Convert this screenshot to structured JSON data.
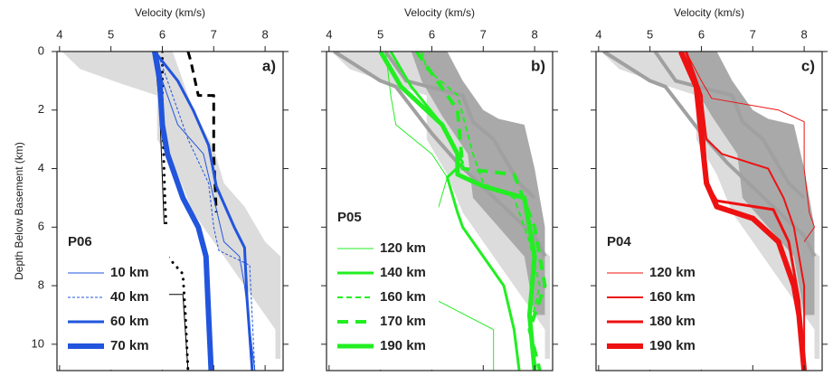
{
  "chart_data": [
    {
      "type": "line",
      "x_label": "Velocity (km/s)",
      "y_label": "Depth Below Basement (km)",
      "panel_label": "a)",
      "legend_title": "P06",
      "xlim": [
        3.95,
        8.35
      ],
      "ylim": [
        0,
        10.9
      ],
      "xticks": [
        4,
        5,
        6,
        7,
        8
      ],
      "yticks": [
        0,
        2,
        4,
        6,
        8,
        10
      ],
      "y_inverted": true,
      "regions": [
        {
          "color": "#dcdcdc",
          "x": [
            4.05,
            4.4,
            5.2,
            5.9,
            5.9,
            6.3,
            6.6,
            7.2,
            7.6,
            8.2,
            8.2,
            8.3,
            8.3,
            8.0,
            7.6,
            7.2,
            7.0,
            6.6,
            6.3,
            6.2
          ],
          "y": [
            0,
            0.6,
            1.1,
            1.5,
            3,
            4.2,
            5.5,
            7,
            8,
            9.5,
            10.5,
            10.5,
            7,
            6.5,
            5.3,
            4.5,
            3.3,
            2.0,
            0.5,
            0
          ]
        }
      ],
      "lines": [
        {
          "color": "#000000",
          "linestyle": "dotted",
          "linewidth": 3,
          "x": [
            6.0,
            6.0,
            6.05,
            6.1,
            6.4,
            6.45,
            6.5
          ],
          "y": [
            0,
            2,
            5,
            7,
            7.6,
            9,
            10.9
          ]
        },
        {
          "color": "#000000",
          "linestyle": "solid",
          "linewidth": 1,
          "x": [
            5.85,
            5.95,
            6.05,
            6.1,
            6.4,
            6.5
          ],
          "y": [
            0,
            2,
            6.6,
            8.3,
            8.3,
            10.9
          ]
        },
        {
          "color": "#000000",
          "linestyle": "dashed",
          "linewidth": 3,
          "x": [
            6.5,
            6.55,
            6.7,
            7.0,
            7.0,
            7.05
          ],
          "y": [
            0,
            0.3,
            1.5,
            1.5,
            3.5,
            5.5
          ]
        }
      ],
      "series": [
        {
          "name": "10 km",
          "color": "#2255dd",
          "linestyle": "solid",
          "linewidth": 1,
          "x": [
            5.9,
            6.0,
            6.3,
            6.8,
            7.0,
            7.2,
            7.5,
            7.6,
            7.8
          ],
          "y": [
            0,
            1,
            2.5,
            3.5,
            5,
            6.5,
            7,
            8,
            10.9
          ]
        },
        {
          "name": "40 km",
          "color": "#2255dd",
          "linestyle": "dashed",
          "linewidth": 1,
          "x": [
            5.9,
            6.2,
            6.5,
            6.9,
            7.0,
            7.1,
            7.7,
            7.8
          ],
          "y": [
            0,
            1.5,
            3.0,
            4.5,
            6.0,
            6.8,
            7.3,
            10.9
          ]
        },
        {
          "name": "60 km",
          "color": "#2255dd",
          "linestyle": "solid",
          "linewidth": 3,
          "x": [
            5.85,
            6.3,
            6.6,
            6.9,
            7.05,
            7.4,
            7.6,
            7.65,
            7.75
          ],
          "y": [
            0,
            1,
            2,
            3.2,
            4.6,
            6,
            6.7,
            8.5,
            10.9
          ]
        },
        {
          "name": "70 km",
          "color": "#2255dd",
          "linestyle": "solid",
          "linewidth": 6,
          "x": [
            5.85,
            5.95,
            6.0,
            6.1,
            6.4,
            6.7,
            6.85,
            6.9,
            6.95
          ],
          "y": [
            0,
            1,
            2.5,
            3.5,
            5.0,
            6,
            7,
            9,
            10.9
          ]
        }
      ]
    },
    {
      "type": "line",
      "x_label": "Velocity (km/s)",
      "panel_label": "b)",
      "legend_title": "P05",
      "xlim": [
        3.95,
        8.35
      ],
      "ylim": [
        0,
        10.9
      ],
      "xticks": [
        4,
        5,
        6,
        7,
        8
      ],
      "yticks": [
        0,
        2,
        4,
        6,
        8,
        10
      ],
      "y_inverted": true,
      "regions": [
        {
          "color": "#dcdcdc",
          "x": [
            4.05,
            4.4,
            5.2,
            5.9,
            5.9,
            6.3,
            6.6,
            7.2,
            7.6,
            8.2,
            8.2,
            8.3,
            8.3,
            8.0,
            7.6,
            7.2,
            7.0,
            6.6,
            6.3,
            6.2
          ],
          "y": [
            0,
            0.6,
            1.1,
            1.5,
            3,
            4.2,
            5.5,
            7,
            8,
            9.5,
            10.5,
            10.5,
            7,
            6.5,
            5.3,
            4.5,
            3.3,
            2.0,
            0.5,
            0
          ]
        },
        {
          "color": "#a9a9a9",
          "x": [
            5.6,
            6.3,
            6.6,
            7.0,
            7.3,
            7.8,
            8.0,
            8.2,
            8.2,
            8.0,
            7.8,
            7.3,
            6.8,
            6.7,
            6.2,
            5.8
          ],
          "y": [
            0,
            0,
            1,
            2,
            2.3,
            2.5,
            4,
            6,
            9,
            9,
            7,
            6.0,
            5.0,
            3.5,
            2.2,
            1.0
          ]
        }
      ],
      "lines": [
        {
          "color": "#a0a0a0",
          "linestyle": "solid",
          "linewidth": 4,
          "x": [
            4.1,
            5.0,
            5.3,
            6.0,
            6.5,
            7.4,
            8.0,
            8.2
          ],
          "y": [
            0,
            1,
            1.2,
            2.8,
            3.8,
            5.3,
            6.3,
            7
          ]
        },
        {
          "color": "#a0a0a0",
          "linestyle": "solid",
          "linewidth": 4,
          "x": [
            5.1,
            5.5,
            6.6,
            6.8,
            7.2,
            7.7,
            8.0
          ],
          "y": [
            0,
            1.0,
            1.5,
            2.4,
            3.0,
            4.5,
            5
          ]
        }
      ],
      "series": [
        {
          "name": "120 km",
          "color": "#22ee22",
          "linestyle": "solid",
          "linewidth": 1,
          "x": [
            5.1,
            5.2,
            5.3,
            6.0,
            6.3,
            6.1,
            6.0,
            6.1,
            7.2,
            7.2
          ],
          "y": [
            0,
            1.5,
            2.5,
            3.5,
            4.3,
            5.5,
            7.5,
            8.5,
            9.5,
            10.9
          ]
        },
        {
          "name": "140 km",
          "color": "#22ee22",
          "linestyle": "solid",
          "linewidth": 3,
          "x": [
            5.2,
            5.6,
            6.2,
            6.6,
            6.3,
            6.5,
            6.6,
            7.4,
            7.6,
            7.7
          ],
          "y": [
            0,
            1.2,
            2.5,
            3.8,
            4.3,
            5.5,
            6,
            8,
            9.5,
            10.9
          ]
        },
        {
          "name": "160 km",
          "color": "#22ee22",
          "linestyle": "dashed",
          "linewidth": 2,
          "x": [
            5.8,
            5.9,
            6.5,
            6.8,
            7.0,
            7.6,
            7.9,
            8.1,
            7.9,
            8.0
          ],
          "y": [
            0,
            0.6,
            1.5,
            3.5,
            4.5,
            5,
            6.5,
            8,
            9.5,
            10.9
          ]
        },
        {
          "name": "170 km",
          "color": "#22ee22",
          "linestyle": "dashed",
          "linewidth": 4,
          "x": [
            5.7,
            6.5,
            6.6,
            7.6,
            8.0,
            8.2,
            7.9,
            8.1
          ],
          "y": [
            0,
            2,
            4,
            4.2,
            6,
            8,
            9.5,
            10.9
          ]
        },
        {
          "name": "190 km",
          "color": "#22ee22",
          "linestyle": "solid",
          "linewidth": 5,
          "x": [
            5.0,
            5.4,
            6.2,
            6.5,
            6.5,
            7.0,
            7.8,
            8.0,
            7.9,
            8.0
          ],
          "y": [
            0,
            1.2,
            2.5,
            3.5,
            4.2,
            4.6,
            5.0,
            7,
            9,
            10.9
          ]
        }
      ]
    },
    {
      "type": "line",
      "x_label": "Velocity (km/s)",
      "panel_label": "c)",
      "legend_title": "P04",
      "xlim": [
        3.95,
        8.35
      ],
      "ylim": [
        0,
        10.9
      ],
      "xticks": [
        4,
        5,
        6,
        7,
        8
      ],
      "yticks": [
        0,
        2,
        4,
        6,
        8,
        10
      ],
      "y_inverted": true,
      "regions": [
        {
          "color": "#dcdcdc",
          "x": [
            4.05,
            4.4,
            5.2,
            5.9,
            5.9,
            6.3,
            6.6,
            7.2,
            7.6,
            8.2,
            8.2,
            8.3,
            8.3,
            8.0,
            7.6,
            7.2,
            7.0,
            6.6,
            6.3,
            6.2
          ],
          "y": [
            0,
            0.6,
            1.1,
            1.5,
            3,
            4.2,
            5.5,
            7,
            8,
            9.5,
            10.5,
            10.5,
            7,
            6.5,
            5.3,
            4.5,
            3.3,
            2.0,
            0.5,
            0
          ]
        },
        {
          "color": "#a9a9a9",
          "x": [
            5.6,
            6.3,
            6.6,
            7.0,
            7.3,
            7.8,
            8.0,
            8.2,
            8.2,
            8.0,
            7.8,
            7.3,
            6.8,
            6.7,
            6.2,
            5.8
          ],
          "y": [
            0,
            0,
            1,
            2,
            2.3,
            2.5,
            4,
            6,
            9,
            9,
            7,
            6.0,
            5.0,
            3.5,
            2.2,
            1.0
          ]
        }
      ],
      "lines": [
        {
          "color": "#a0a0a0",
          "linestyle": "solid",
          "linewidth": 4,
          "x": [
            4.1,
            5.0,
            5.3,
            6.0,
            6.5,
            7.4,
            8.0,
            8.2
          ],
          "y": [
            0,
            1,
            1.2,
            2.8,
            3.8,
            5.3,
            6.3,
            7
          ]
        },
        {
          "color": "#a0a0a0",
          "linestyle": "solid",
          "linewidth": 4,
          "x": [
            5.1,
            5.5,
            6.6,
            6.8,
            7.2,
            7.7,
            8.0
          ],
          "y": [
            0,
            1.0,
            1.5,
            2.4,
            3.0,
            4.5,
            5
          ]
        }
      ],
      "series": [
        {
          "name": "120 km",
          "color": "#ee1111",
          "linestyle": "solid",
          "linewidth": 1,
          "x": [
            5.7,
            6.0,
            6.2,
            7.5,
            8.0,
            8.0,
            8.1,
            8.2,
            8.0
          ],
          "y": [
            0,
            1,
            1.6,
            2.0,
            2.4,
            4,
            5.5,
            6,
            6.5
          ]
        },
        {
          "name": "160 km",
          "color": "#ee1111",
          "linestyle": "solid",
          "linewidth": 2,
          "x": [
            5.7,
            6.0,
            6.1,
            6.4,
            7.3,
            7.6,
            7.8,
            8.0,
            8.0
          ],
          "y": [
            0,
            1.5,
            3.0,
            3.5,
            4.0,
            5.0,
            6.0,
            8,
            10.9
          ]
        },
        {
          "name": "180 km",
          "color": "#ee1111",
          "linestyle": "solid",
          "linewidth": 3,
          "x": [
            5.7,
            6.0,
            6.1,
            6.3,
            7.4,
            7.7,
            7.9,
            8.0
          ],
          "y": [
            0,
            1.5,
            4.5,
            5.1,
            5.4,
            6.5,
            8.5,
            10.9
          ]
        },
        {
          "name": "190 km",
          "color": "#ee1111",
          "linestyle": "solid",
          "linewidth": 6,
          "x": [
            5.6,
            5.9,
            6.1,
            6.3,
            7.0,
            7.5,
            7.8,
            7.9,
            8.0
          ],
          "y": [
            0,
            1.2,
            4.5,
            5.3,
            5.7,
            6.5,
            8,
            9,
            10.9
          ]
        }
      ]
    }
  ]
}
